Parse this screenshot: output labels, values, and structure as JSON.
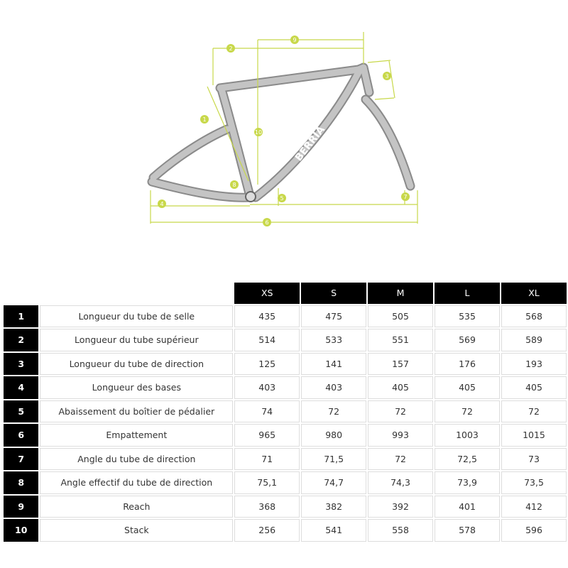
{
  "diagram": {
    "brand": "BERRIA",
    "labels": [
      "1",
      "2",
      "3",
      "4",
      "5",
      "6",
      "7",
      "8",
      "9",
      "10"
    ]
  },
  "table": {
    "header": [
      "XS",
      "S",
      "M",
      "L",
      "XL"
    ],
    "rows": [
      {
        "number": "1",
        "label": "Longueur du tube de selle",
        "values": [
          "435",
          "475",
          "505",
          "535",
          "568"
        ]
      },
      {
        "number": "2",
        "label": "Longueur du tube supérieur",
        "values": [
          "514",
          "533",
          "551",
          "569",
          "589"
        ]
      },
      {
        "number": "3",
        "label": "Longueur du tube de direction",
        "values": [
          "125",
          "141",
          "157",
          "176",
          "193"
        ]
      },
      {
        "number": "4",
        "label": "Longueur des bases",
        "values": [
          "403",
          "403",
          "405",
          "405",
          "405"
        ]
      },
      {
        "number": "5",
        "label": "Abaissement du boîtier de pédalier",
        "values": [
          "74",
          "72",
          "72",
          "72",
          "72"
        ]
      },
      {
        "number": "6",
        "label": "Empattement",
        "values": [
          "965",
          "980",
          "993",
          "1003",
          "1015"
        ]
      },
      {
        "number": "7",
        "label": "Angle du tube de direction",
        "values": [
          "71",
          "71,5",
          "72",
          "72,5",
          "73"
        ]
      },
      {
        "number": "8",
        "label": "Angle effectif du tube de direction",
        "values": [
          "75,1",
          "74,7",
          "74,3",
          "73,9",
          "73,5"
        ]
      },
      {
        "number": "9",
        "label": "Reach",
        "values": [
          "368",
          "382",
          "392",
          "401",
          "412"
        ]
      },
      {
        "number": "10",
        "label": "Stack",
        "values": [
          "256",
          "541",
          "558",
          "578",
          "596"
        ]
      }
    ]
  }
}
